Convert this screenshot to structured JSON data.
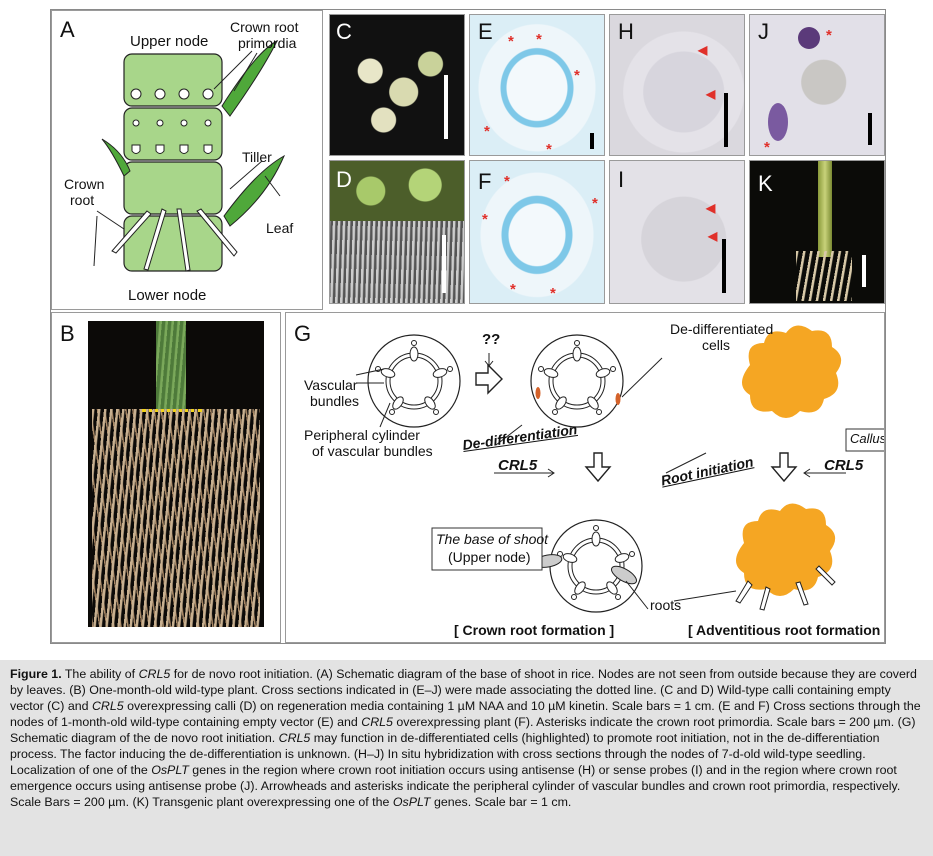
{
  "panels": {
    "A": {
      "label": "A",
      "upper_node": "Upper node",
      "crown_root_primordia_1": "Crown root",
      "crown_root_primordia_2": "primordia",
      "tiller": "Tiller",
      "crown_root_1": "Crown",
      "crown_root_2": "root",
      "leaf": "Leaf",
      "lower_node": "Lower node"
    },
    "B": {
      "label": "B"
    },
    "C": {
      "label": "C"
    },
    "D": {
      "label": "D"
    },
    "E": {
      "label": "E"
    },
    "F": {
      "label": "F"
    },
    "H": {
      "label": "H"
    },
    "I": {
      "label": "I"
    },
    "J": {
      "label": "J"
    },
    "K": {
      "label": "K"
    },
    "G": {
      "label": "G",
      "question": "??",
      "vascular_1": "Vascular",
      "vascular_2": "bundles",
      "peripheral_1": "Peripheral cylinder",
      "peripheral_2": "of vascular bundles",
      "de_diff_cells_1": "De-differentiated",
      "de_diff_cells_2": "cells",
      "de_differentiation": "De-differentiation",
      "root_initiation": "Root initiation",
      "crl5_left": "CRL5",
      "crl5_right": "CRL5",
      "callus": "Callus",
      "base_of_shoot_1": "The base of shoot",
      "base_of_shoot_2": "(Upper node)",
      "roots": "roots",
      "crown_root_formation": "[ Crown root formation ]",
      "adventitious_root_formation": "[ Adventitious root formation ]"
    }
  },
  "caption": {
    "figure_label": "Figure 1.",
    "seg1": " The ability of ",
    "crl5_a": "CRL5",
    "seg2": " for de novo root initiation. (A) Schematic diagram of the base of shoot in rice. Nodes are not seen from outside because they are coverd by leaves. (B) One-month-old wild-type plant. Cross sections indicated in (E–J) were made associating the dotted line. (C and D) Wild-type calli containing empty vector (C) and ",
    "crl5_b": "CRL5",
    "seg3": " overexpressing calli (D) on regeneration media containing 1 µM NAA and 10 µM kinetin. Scale bars = 1 cm. (E and F) Cross sections through the nodes of 1-month-old wild-type containing empty vector (E) and ",
    "crl5_c": "CRL5",
    "seg4": " overexpressing plant (F). Asterisks indicate the crown root primordia. Scale bars = 200 µm. (G) Schematic diagram of the de novo root initiation. ",
    "crl5_d": "CRL5",
    "seg5": " may function in de-differentiated cells (highlighted) to promote root initiation, not in the de-differentiation process. The factor inducing the de-differentiation is unknown. (H–J) In situ hybridization with cross sections through the nodes of 7-d-old wild-type seedling. Localization of one of the ",
    "osplt_a": "OsPLT",
    "seg6": " genes in the region where crown root initiation occurs using antisense (H) or sense probes (I) and in the region where crown root emergence occurs using antisense probe (J). Arrowheads and asterisks indicate the peripheral cylinder of vascular bundles and crown root primordia, respectively. Scale Bars = 200 µm. (K) Transgenic plant overexpressing one of the ",
    "osplt_b": "OsPLT",
    "seg7": " genes. Scale bar = 1 cm."
  },
  "colors": {
    "stem_green": "#a8d68a",
    "leaf_green": "#4fa83a",
    "callus_orange": "#f5a623",
    "stain_blue": "#7ec8e8",
    "asterisk_red": "#e0302a",
    "caption_bg": "#e3e3e3"
  }
}
